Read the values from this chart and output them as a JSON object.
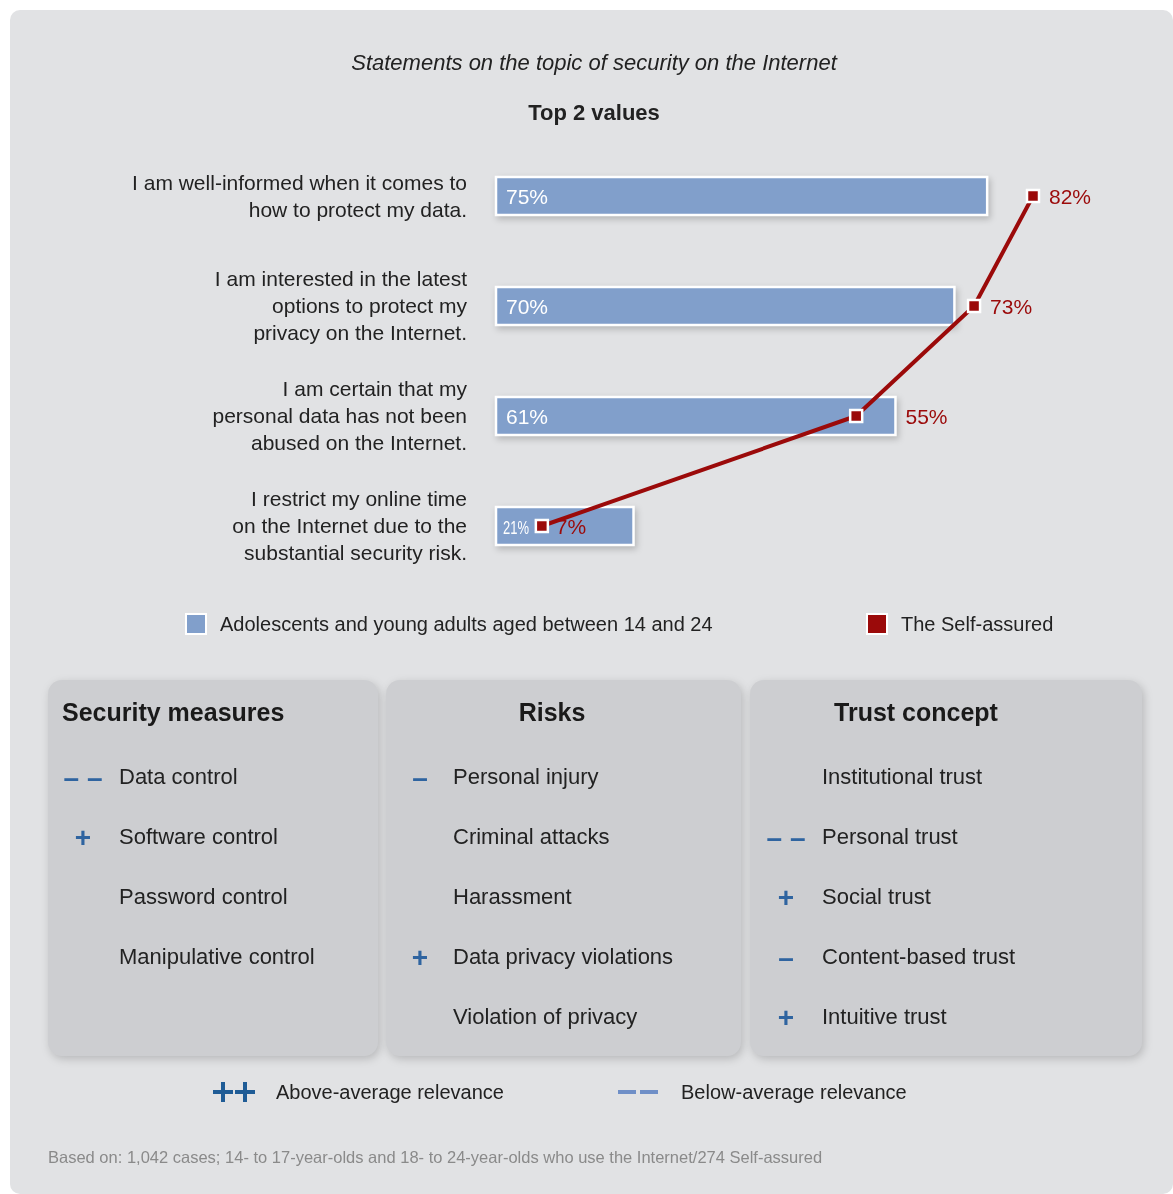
{
  "chart_data": [
    {
      "type": "bar",
      "orientation": "horizontal",
      "title": "Statements on the topic of security on the Internet",
      "subtitle": "Top 2 values",
      "categories": [
        "I am well-informed when it comes to\nhow to protect my data.",
        "I am interested in the latest\noptions to protect my\nprivacy on the Internet.",
        "I am certain that my\npersonal data has not been\nabused on the Internet.",
        "I restrict my online time\non the Internet due to the\nsubstantial security risk."
      ],
      "legend": "bottom",
      "marker": "square",
      "series": [
        {
          "name": "Adolescents and young adults aged between 14 and 24",
          "color": "#819fcb",
          "values": [
            75,
            70,
            61,
            21
          ],
          "value_labels": [
            "75%",
            "70%",
            "61%",
            "21%"
          ]
        },
        {
          "name": "The Self-assured",
          "type": "line",
          "color": "#9b0a0a",
          "values": [
            82,
            73,
            55,
            7
          ],
          "value_labels": [
            "82%",
            "73%",
            "55%",
            "7%"
          ]
        }
      ]
    },
    {
      "type": "other",
      "title": "Security measures",
      "categories": [
        "Data control",
        "Software control",
        "Password control",
        "Manipulative control"
      ],
      "value_labels": [
        "– –",
        "+",
        null,
        null
      ]
    },
    {
      "type": "other",
      "title": "Risks",
      "categories": [
        "Personal injury",
        "Criminal attacks",
        "Harassment",
        "Data privacy violations",
        "Violation of privacy"
      ],
      "value_labels": [
        "–",
        null,
        null,
        "+",
        null
      ]
    },
    {
      "type": "other",
      "title": "Trust concept",
      "categories": [
        "Institutional trust",
        "Personal trust",
        "Social trust",
        "Content-based trust",
        "Intuitive trust"
      ],
      "value_labels": [
        null,
        "– –",
        "+",
        "–",
        "+"
      ]
    },
    {
      "type": "other",
      "annotations": [
        "Above-average relevance",
        "Below-average relevance",
        "Based on: 1,042 cases; 14- to 17-year-olds and 18- to 24-year-olds who use the Internet/274 Self-assured"
      ]
    }
  ]
}
